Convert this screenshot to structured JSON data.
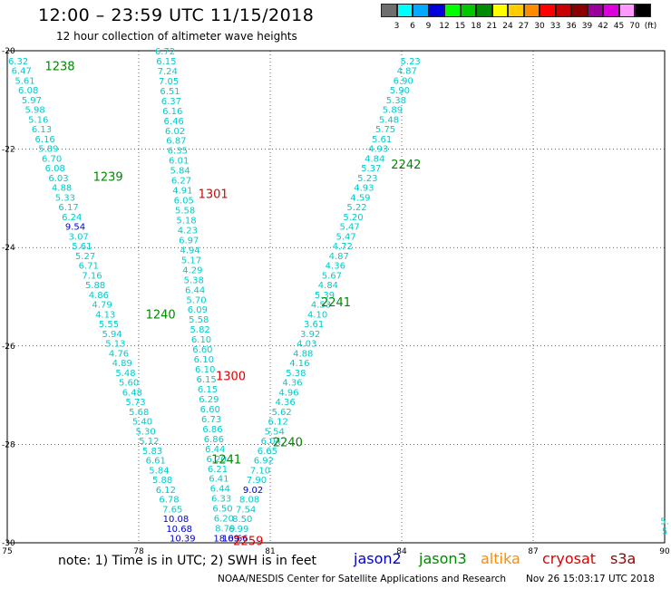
{
  "header": {
    "title": "12:00 – 23:59 UTC 11/15/2018",
    "subtitle": "12 hour collection of altimeter wave heights"
  },
  "legend": {
    "swatches": [
      {
        "color": "#6e6e6e",
        "label": "3"
      },
      {
        "color": "#00ffff",
        "label": "6"
      },
      {
        "color": "#00aaff",
        "label": "9"
      },
      {
        "color": "#0000dd",
        "label": "12"
      },
      {
        "color": "#00ff00",
        "label": "15"
      },
      {
        "color": "#00c800",
        "label": "18"
      },
      {
        "color": "#008c00",
        "label": "21"
      },
      {
        "color": "#ffff00",
        "label": "24"
      },
      {
        "color": "#ffcc00",
        "label": "27"
      },
      {
        "color": "#ff8c00",
        "label": "30"
      },
      {
        "color": "#ff0000",
        "label": "33"
      },
      {
        "color": "#c80000",
        "label": "36"
      },
      {
        "color": "#8c0000",
        "label": "39"
      },
      {
        "color": "#9b009b",
        "label": "42"
      },
      {
        "color": "#dd00dd",
        "label": "45"
      },
      {
        "color": "#ff99ff",
        "label": "70"
      },
      {
        "color": "#000000",
        "label": "(ft)"
      }
    ]
  },
  "footer": {
    "note": "note:  1) Time is in UTC;  2) SWH is in feet",
    "satellites": [
      {
        "name": "jason2",
        "color": "#0000cc"
      },
      {
        "name": "jason3",
        "color": "#008800"
      },
      {
        "name": "altika",
        "color": "#ff8c00"
      },
      {
        "name": "cryosat",
        "color": "#dd0000"
      },
      {
        "name": "s3a",
        "color": "#990000"
      }
    ],
    "credit": "NOAA/NESDIS Center for Satellite Applications and Research",
    "timestamp": "Nov 26 15:03:17 UTC 2018"
  },
  "chart_data": {
    "type": "scatter",
    "xlim": [
      75,
      90
    ],
    "ylim": [
      -30,
      -20
    ],
    "x_ticks": [
      75,
      78,
      81,
      84,
      87,
      90
    ],
    "y_ticks": [
      -20,
      -22,
      -24,
      -26,
      -28,
      -30
    ],
    "grid": true,
    "colors": {
      "low": "#00cccc",
      "mid": "#0000cc",
      "green": "#008800",
      "red": "#dd0000"
    },
    "time_labels": [
      {
        "text": "1238",
        "x": 76.2,
        "y": -20.3,
        "color": "green"
      },
      {
        "text": "1239",
        "x": 77.3,
        "y": -22.55,
        "color": "green"
      },
      {
        "text": "1240",
        "x": 78.5,
        "y": -25.35,
        "color": "green"
      },
      {
        "text": "1241",
        "x": 80.0,
        "y": -28.3,
        "color": "green"
      },
      {
        "text": "1301",
        "x": 79.7,
        "y": -22.9,
        "color": "red"
      },
      {
        "text": "1300",
        "x": 80.1,
        "y": -26.6,
        "color": "red"
      },
      {
        "text": "2259",
        "x": 80.5,
        "y": -29.95,
        "color": "red"
      },
      {
        "text": "2242",
        "x": 84.1,
        "y": -22.3,
        "color": "green"
      },
      {
        "text": "2241",
        "x": 82.5,
        "y": -25.1,
        "color": "green"
      },
      {
        "text": "2240",
        "x": 81.4,
        "y": -27.95,
        "color": "green"
      }
    ],
    "tracks": [
      {
        "name": "",
        "start": [
          75.25,
          -20.2
        ],
        "end": [
          79.0,
          -29.9
        ],
        "values": [
          "6.32",
          "6.47",
          "5.61",
          "6.08",
          "5.97",
          "5.98",
          "5.16",
          "6.13",
          "6.16",
          "5.89",
          "6.70",
          "6.08",
          "6.03",
          "4.88",
          "5.33",
          "6.17",
          "6.24",
          "9.54",
          "3.07",
          "5.61",
          "5.27",
          "6.71",
          "7.16",
          "5.88",
          "4.86",
          "4.79",
          "4.13",
          "5.55",
          "5.94",
          "5.13",
          "4.76",
          "4.89",
          "5.48",
          "5.60",
          "6.48",
          "5.73",
          "5.68",
          "5.40",
          "5.30",
          "5.12",
          "5.83",
          "6.61",
          "5.84",
          "5.88",
          "6.12",
          "6.78",
          "7.65",
          "10.08",
          "10.68",
          "10.39"
        ]
      },
      {
        "name": "",
        "start": [
          78.6,
          -20.0
        ],
        "end": [
          80.0,
          -29.9
        ],
        "values": [
          "6.72",
          "6.15",
          "7.24",
          "7.05",
          "6.51",
          "6.37",
          "6.16",
          "6.46",
          "6.02",
          "6.87",
          "6.35",
          "6.01",
          "5.84",
          "6.27",
          "4.91",
          "6.05",
          "5.58",
          "5.18",
          "4.23",
          "6.97",
          "4.94",
          "5.17",
          "4.29",
          "5.38",
          "6.44",
          "5.70",
          "6.09",
          "5.58",
          "5.82",
          "6.10",
          "6.60",
          "6.10",
          "6.10",
          "6.15",
          "6.15",
          "6.29",
          "6.60",
          "6.73",
          "6.86",
          "6.86",
          "6.44",
          "6.20",
          "6.21",
          "6.41",
          "6.44",
          "6.33",
          "6.50",
          "6.20",
          "8.79",
          "18.69"
        ]
      },
      {
        "name": "",
        "start": [
          84.2,
          -20.2
        ],
        "end": [
          80.2,
          -29.9
        ],
        "values": [
          "5.23",
          "4.87",
          "6.90",
          "5.90",
          "5.38",
          "5.89",
          "5.48",
          "5.75",
          "5.61",
          "4.93",
          "4.84",
          "5.37",
          "5.23",
          "4.93",
          "4.59",
          "5.22",
          "5.20",
          "5.47",
          "5.47",
          "4.72",
          "4.87",
          "4.36",
          "5.67",
          "4.84",
          "5.39",
          "4.53",
          "4.10",
          "3.61",
          "3.92",
          "4.03",
          "4.88",
          "4.16",
          "5.38",
          "4.36",
          "4.96",
          "4.36",
          "5.62",
          "6.12",
          "5.54",
          "6.04",
          "6.65",
          "6.92",
          "7.10",
          "7.90",
          "9.02",
          "8.08",
          "7.54",
          "8.50",
          "6.99",
          "10.66"
        ]
      }
    ],
    "edge_values": [
      {
        "text": "5.",
        "x": 90.0,
        "y": -29.55
      },
      {
        "text": "5",
        "x": 90.0,
        "y": -29.75
      }
    ]
  }
}
